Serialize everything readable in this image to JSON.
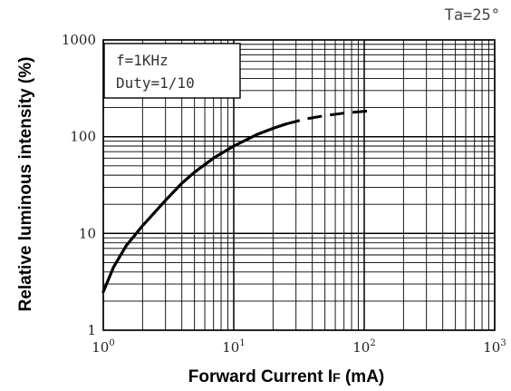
{
  "chart_data": {
    "type": "line",
    "xlabel": "Forward Current I",
    "xlabel_subscript": "F",
    "xlabel_unit": " (mA)",
    "ylabel": "Relative luminous intensity (%)",
    "x_scale": "log",
    "y_scale": "log",
    "xlim": [
      1,
      1000
    ],
    "ylim": [
      1,
      1000
    ],
    "grid": true,
    "x_ticks": [
      {
        "base": "10",
        "exp": "0"
      },
      {
        "base": "10",
        "exp": "1"
      },
      {
        "base": "10",
        "exp": "2"
      },
      {
        "base": "10",
        "exp": "3"
      }
    ],
    "y_ticks": [
      "1",
      "10",
      "100",
      "1000"
    ],
    "annotations": {
      "condition_line1": "f=1KHz",
      "condition_line2": "Duty=1/10",
      "temperature": "Ta=25°"
    },
    "series": [
      {
        "style": "solid",
        "x": [
          1,
          1.2,
          1.5,
          2,
          3,
          4,
          5,
          7,
          10,
          15,
          20,
          25
        ],
        "y": [
          2.5,
          4.5,
          7.5,
          12,
          22,
          33,
          43,
          60,
          80,
          105,
          122,
          135
        ]
      },
      {
        "style": "dashed",
        "x": [
          25,
          35,
          50,
          70,
          100,
          120
        ],
        "y": [
          135,
          152,
          165,
          175,
          183,
          186
        ]
      }
    ]
  }
}
